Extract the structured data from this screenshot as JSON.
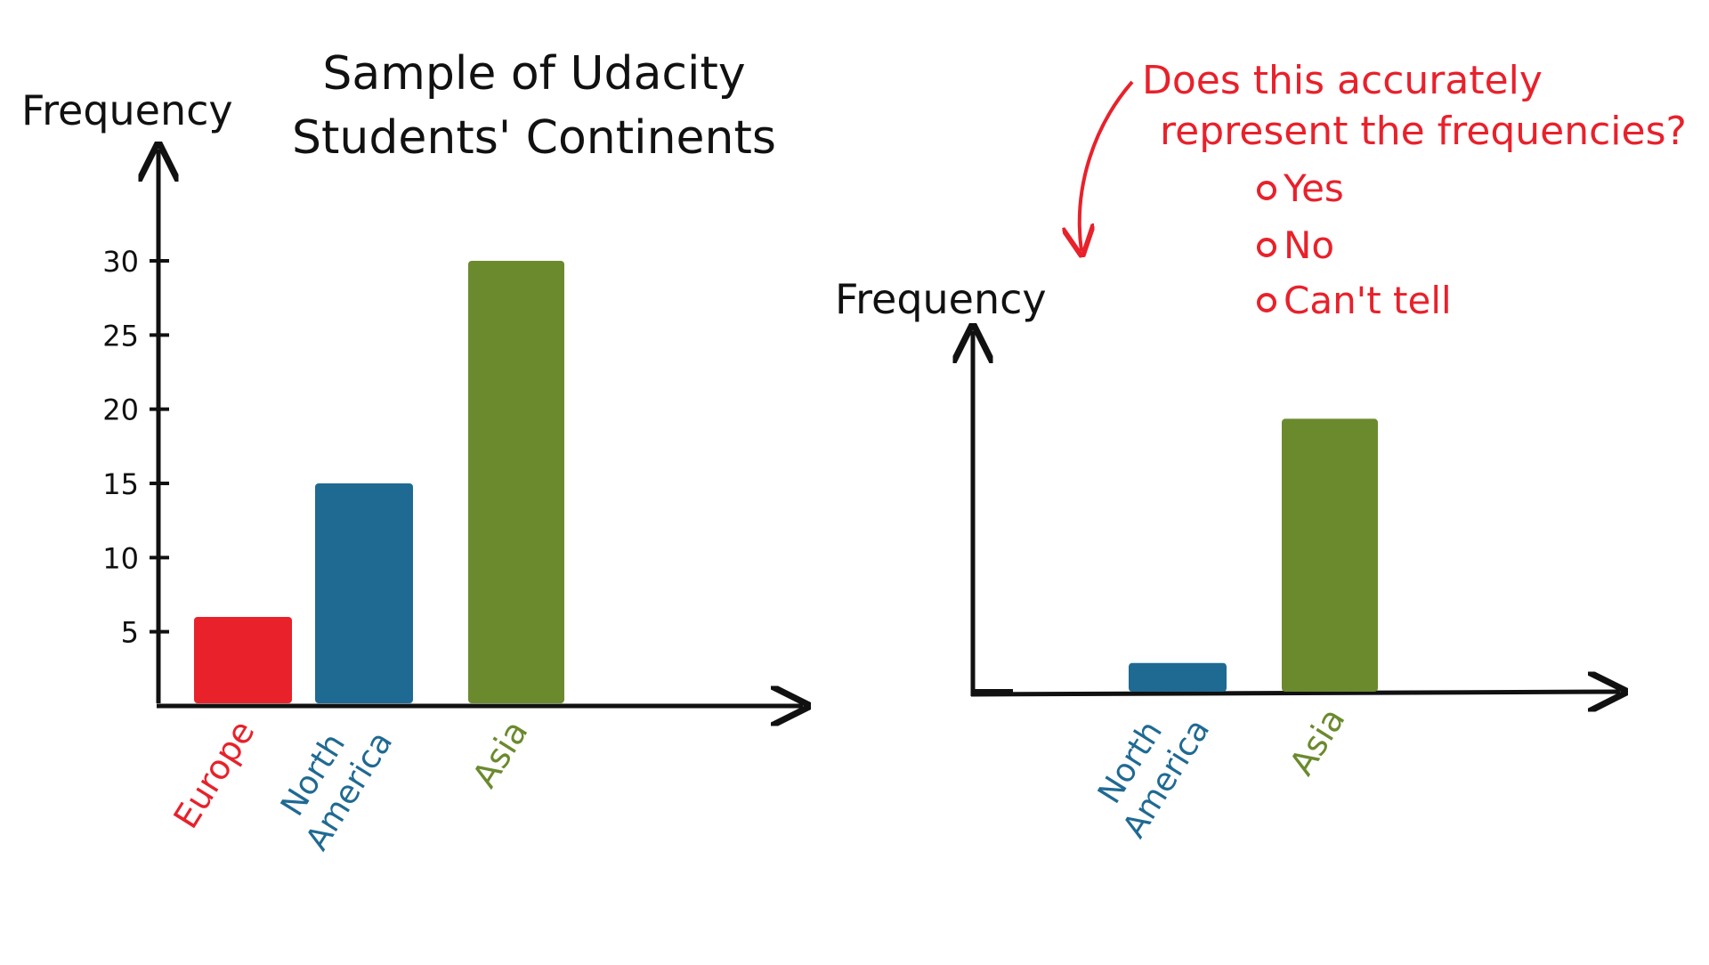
{
  "chart_data": [
    {
      "type": "bar",
      "title": "Sample of Udacity Students' Continents",
      "ylabel": "Frequency",
      "xlabel": "",
      "categories": [
        "Europe",
        "North America",
        "Asia"
      ],
      "values": [
        6,
        15,
        30
      ],
      "colors": [
        "#e8212b",
        "#1f6a93",
        "#6b8a2e"
      ],
      "yticks": [
        5,
        10,
        15,
        20,
        25,
        30
      ],
      "ylim": [
        0,
        30
      ],
      "grid": false
    },
    {
      "type": "bar",
      "ylabel": "Frequency",
      "categories": [
        "North America",
        "Asia"
      ],
      "values": [
        3,
        27
      ],
      "colors": [
        "#1f6a93",
        "#6b8a2e"
      ],
      "yticks": [],
      "ylim": [
        0,
        35
      ],
      "grid": false
    }
  ],
  "question": {
    "text_line1": "Does this accurately",
    "text_line2": "represent the frequencies?",
    "options": [
      "Yes",
      "No",
      "Can't tell"
    ],
    "color": "#e8212b"
  }
}
